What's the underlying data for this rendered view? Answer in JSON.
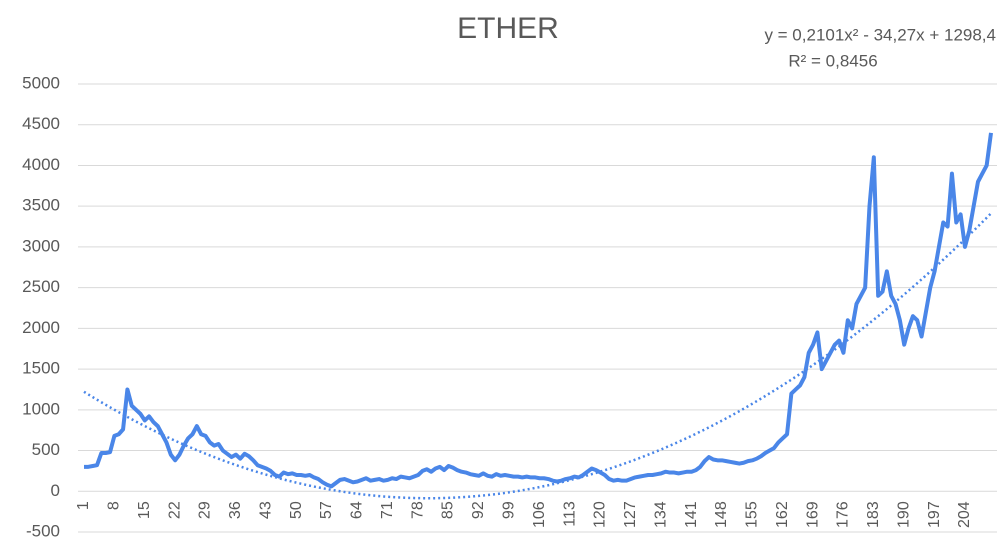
{
  "chart_data": {
    "type": "line",
    "title": "ETHER",
    "annotations": [
      "y = 0,2101x² - 34,27x + 1298,4",
      "R² = 0,8456"
    ],
    "categories": [
      "1",
      null,
      null,
      null,
      null,
      null,
      null,
      "8",
      null,
      null,
      null,
      null,
      null,
      null,
      "15",
      null,
      null,
      null,
      null,
      null,
      null,
      "22",
      null,
      null,
      null,
      null,
      null,
      null,
      "29",
      null,
      null,
      null,
      null,
      null,
      null,
      "36",
      null,
      null,
      null,
      null,
      null,
      null,
      "43",
      null,
      null,
      null,
      null,
      null,
      null,
      "50",
      null,
      null,
      null,
      null,
      null,
      null,
      "57",
      null,
      null,
      null,
      null,
      null,
      null,
      "64",
      null,
      null,
      null,
      null,
      null,
      null,
      "71",
      null,
      null,
      null,
      null,
      null,
      null,
      "78",
      null,
      null,
      null,
      null,
      null,
      null,
      "85",
      null,
      null,
      null,
      null,
      null,
      null,
      "92",
      null,
      null,
      null,
      null,
      null,
      null,
      "99",
      null,
      null,
      null,
      null,
      null,
      null,
      "106",
      null,
      null,
      null,
      null,
      null,
      null,
      "113",
      null,
      null,
      null,
      null,
      null,
      null,
      "120",
      null,
      null,
      null,
      null,
      null,
      null,
      "127",
      null,
      null,
      null,
      null,
      null,
      null,
      "134",
      null,
      null,
      null,
      null,
      null,
      null,
      "141",
      null,
      null,
      null,
      null,
      null,
      null,
      "148",
      null,
      null,
      null,
      null,
      null,
      null,
      "155",
      null,
      null,
      null,
      null,
      null,
      null,
      "162",
      null,
      null,
      null,
      null,
      null,
      null,
      "169",
      null,
      null,
      null,
      null,
      null,
      null,
      "176",
      null,
      null,
      null,
      null,
      null,
      null,
      "183",
      null,
      null,
      null,
      null,
      null,
      null,
      "190",
      null,
      null,
      null,
      null,
      null,
      null,
      "197",
      null,
      null,
      null,
      null,
      null,
      null,
      "204",
      null,
      null,
      null,
      null,
      null,
      null
    ],
    "series": [
      {
        "color": "#4a86e8",
        "values": [
          300,
          300,
          310,
          320,
          470,
          470,
          480,
          680,
          700,
          760,
          1250,
          1050,
          1000,
          950,
          870,
          920,
          850,
          800,
          700,
          600,
          450,
          380,
          450,
          560,
          650,
          700,
          800,
          700,
          680,
          600,
          560,
          580,
          500,
          460,
          420,
          450,
          400,
          460,
          430,
          380,
          320,
          300,
          280,
          250,
          200,
          180,
          230,
          210,
          220,
          200,
          200,
          190,
          200,
          170,
          150,
          110,
          80,
          60,
          100,
          140,
          150,
          130,
          110,
          120,
          140,
          160,
          130,
          140,
          150,
          130,
          140,
          160,
          150,
          180,
          170,
          160,
          180,
          200,
          250,
          270,
          240,
          280,
          300,
          260,
          310,
          290,
          260,
          240,
          230,
          210,
          200,
          190,
          220,
          190,
          180,
          210,
          190,
          200,
          190,
          180,
          180,
          170,
          180,
          170,
          170,
          160,
          160,
          150,
          130,
          120,
          130,
          150,
          160,
          180,
          170,
          200,
          240,
          280,
          260,
          230,
          200,
          150,
          130,
          140,
          130,
          130,
          150,
          170,
          180,
          190,
          200,
          200,
          210,
          220,
          240,
          230,
          230,
          220,
          230,
          240,
          240,
          260,
          300,
          370,
          420,
          390,
          380,
          380,
          370,
          360,
          350,
          340,
          350,
          370,
          380,
          400,
          430,
          470,
          500,
          530,
          600,
          650,
          700,
          1200,
          1250,
          1300,
          1400,
          1700,
          1800,
          1950,
          1500,
          1600,
          1700,
          1800,
          1850,
          1700,
          2100,
          2000,
          2300,
          2400,
          2500,
          3500,
          4100,
          2400,
          2450,
          2700,
          2400,
          2300,
          2100,
          1800,
          2000,
          2150,
          2100,
          1900,
          2200,
          2500,
          2700,
          3000,
          3300,
          3250,
          3900,
          3300,
          3400,
          3000,
          3200,
          3500,
          3800,
          3900,
          4000,
          4400
        ]
      }
    ],
    "trendline": {
      "type": "polynomial",
      "order": 2,
      "style": "dotted"
    },
    "ylim": [
      -500,
      5000
    ],
    "yticks": [
      -500,
      0,
      500,
      1000,
      1500,
      2000,
      2500,
      3000,
      3500,
      4000,
      4500,
      5000
    ],
    "grid": true
  }
}
